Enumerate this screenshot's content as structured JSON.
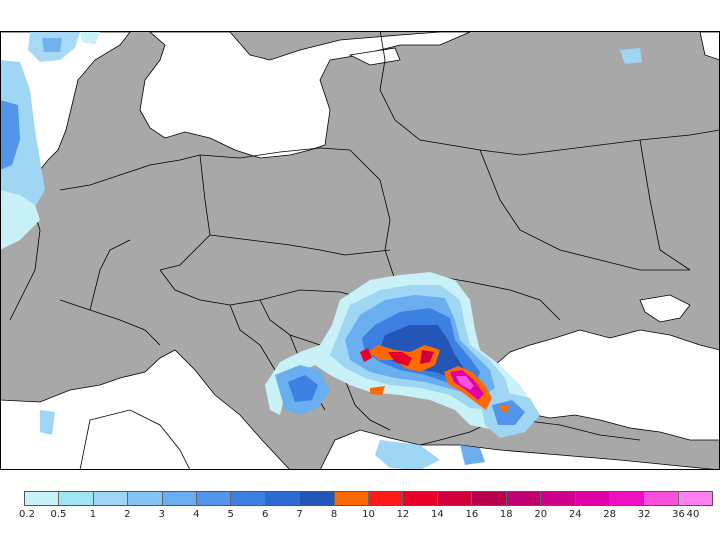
{
  "colors": {
    "land": "#a8a8a8",
    "sea": "#ffffff",
    "border": "#000000"
  },
  "legend": {
    "ticks": [
      "0.2",
      "0.5",
      "1",
      "2",
      "3",
      "4",
      "5",
      "6",
      "7",
      "8",
      "10",
      "12",
      "14",
      "16",
      "18",
      "20",
      "24",
      "28",
      "32",
      "36",
      "40"
    ],
    "colors": [
      "#c8f2f8",
      "#9fe6f2",
      "#9ed6f4",
      "#84c4f2",
      "#6aaef0",
      "#5296ec",
      "#3c80e2",
      "#2e6ad4",
      "#2456b8",
      "#ff6a00",
      "#ff1a1a",
      "#e8002a",
      "#d0003c",
      "#b8004c",
      "#c00070",
      "#d0008c",
      "#e000a8",
      "#f010c4",
      "#f850dc",
      "#ff80ee"
    ]
  }
}
